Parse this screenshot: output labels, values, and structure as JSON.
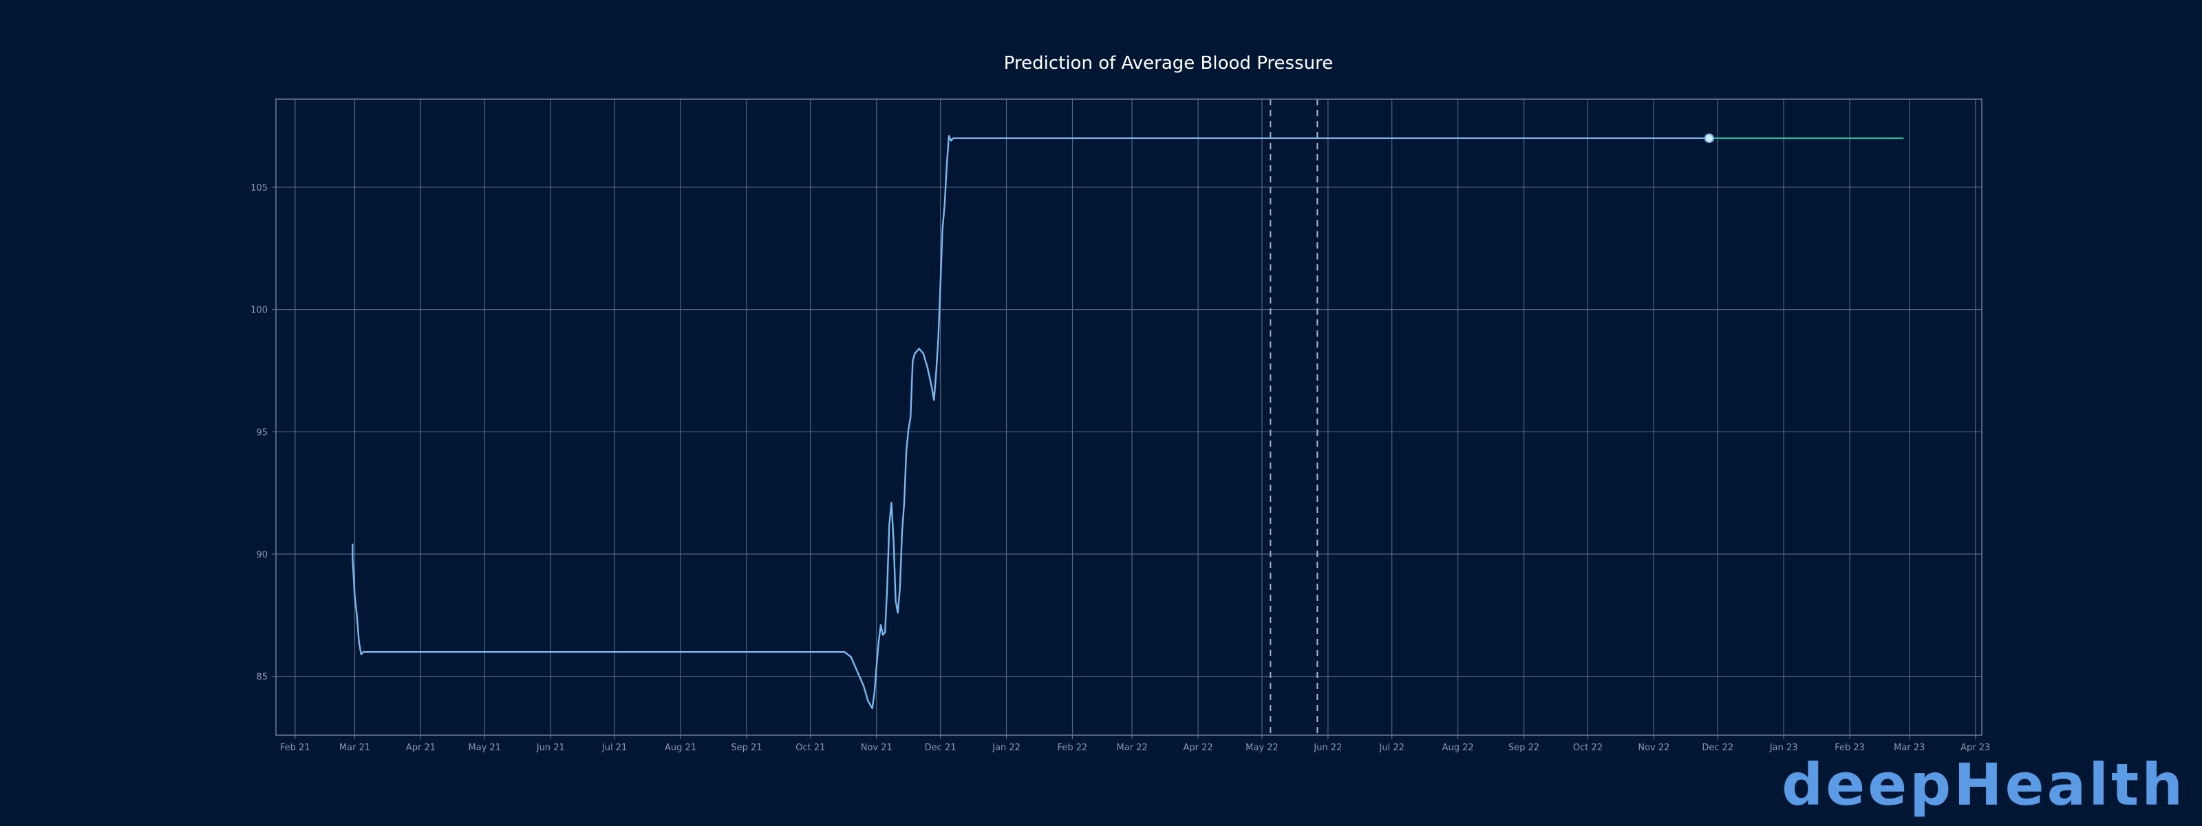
{
  "chart_data": {
    "type": "line",
    "title": "Prediction of Average Blood Pressure",
    "xlabel": "",
    "ylabel": "",
    "x_axis": {
      "type": "date",
      "range": [
        "2021-01-23",
        "2023-04-04"
      ],
      "ticks": [
        {
          "date": "2021-02-01",
          "label": "Feb 21"
        },
        {
          "date": "2021-03-01",
          "label": "Mar 21"
        },
        {
          "date": "2021-04-01",
          "label": "Apr 21"
        },
        {
          "date": "2021-05-01",
          "label": "May 21"
        },
        {
          "date": "2021-06-01",
          "label": "Jun 21"
        },
        {
          "date": "2021-07-01",
          "label": "Jul 21"
        },
        {
          "date": "2021-08-01",
          "label": "Aug 21"
        },
        {
          "date": "2021-09-01",
          "label": "Sep 21"
        },
        {
          "date": "2021-10-01",
          "label": "Oct 21"
        },
        {
          "date": "2021-11-01",
          "label": "Nov 21"
        },
        {
          "date": "2021-12-01",
          "label": "Dec 21"
        },
        {
          "date": "2022-01-01",
          "label": "Jan 22"
        },
        {
          "date": "2022-02-01",
          "label": "Feb 22"
        },
        {
          "date": "2022-03-01",
          "label": "Mar 22"
        },
        {
          "date": "2022-04-01",
          "label": "Apr 22"
        },
        {
          "date": "2022-05-01",
          "label": "May 22"
        },
        {
          "date": "2022-06-01",
          "label": "Jun 22"
        },
        {
          "date": "2022-07-01",
          "label": "Jul 22"
        },
        {
          "date": "2022-08-01",
          "label": "Aug 22"
        },
        {
          "date": "2022-09-01",
          "label": "Sep 22"
        },
        {
          "date": "2022-10-01",
          "label": "Oct 22"
        },
        {
          "date": "2022-11-01",
          "label": "Nov 22"
        },
        {
          "date": "2022-12-01",
          "label": "Dec 22"
        },
        {
          "date": "2023-01-01",
          "label": "Jan 23"
        },
        {
          "date": "2023-02-01",
          "label": "Feb 23"
        },
        {
          "date": "2023-03-01",
          "label": "Mar 23"
        },
        {
          "date": "2023-04-01",
          "label": "Apr 23"
        }
      ]
    },
    "y_axis": {
      "range": [
        82.6,
        108.6
      ],
      "ticks": [
        85,
        90,
        95,
        100,
        105
      ]
    },
    "grid": true,
    "series": [
      {
        "role": "history",
        "color": "#7db8ee",
        "points": [
          [
            "2021-02-28",
            90.4
          ],
          [
            "2021-02-28",
            89.8
          ],
          [
            "2021-03-01",
            88.3
          ],
          [
            "2021-03-02",
            87.5
          ],
          [
            "2021-03-03",
            86.4
          ],
          [
            "2021-03-04",
            85.9
          ],
          [
            "2021-03-05",
            86.0
          ],
          [
            "2021-03-15",
            86.0
          ],
          [
            "2021-05-01",
            86.0
          ],
          [
            "2021-07-01",
            86.0
          ],
          [
            "2021-09-01",
            86.0
          ],
          [
            "2021-10-17",
            86.0
          ],
          [
            "2021-10-20",
            85.8
          ],
          [
            "2021-10-23",
            85.2
          ],
          [
            "2021-10-26",
            84.6
          ],
          [
            "2021-10-28",
            84.0
          ],
          [
            "2021-10-30",
            83.7
          ],
          [
            "2021-10-31",
            84.3
          ],
          [
            "2021-11-01",
            85.4
          ],
          [
            "2021-11-02",
            86.4
          ],
          [
            "2021-11-03",
            87.1
          ],
          [
            "2021-11-04",
            86.7
          ],
          [
            "2021-11-05",
            86.8
          ],
          [
            "2021-11-06",
            88.6
          ],
          [
            "2021-11-07",
            91.2
          ],
          [
            "2021-11-08",
            92.1
          ],
          [
            "2021-11-09",
            90.6
          ],
          [
            "2021-11-10",
            88.1
          ],
          [
            "2021-11-11",
            87.6
          ],
          [
            "2021-11-12",
            88.6
          ],
          [
            "2021-11-13",
            90.9
          ],
          [
            "2021-11-14",
            92.1
          ],
          [
            "2021-11-15",
            94.2
          ],
          [
            "2021-11-16",
            95.1
          ],
          [
            "2021-11-17",
            95.6
          ],
          [
            "2021-11-18",
            97.9
          ],
          [
            "2021-11-19",
            98.2
          ],
          [
            "2021-11-21",
            98.4
          ],
          [
            "2021-11-23",
            98.2
          ],
          [
            "2021-11-25",
            97.6
          ],
          [
            "2021-11-27",
            96.8
          ],
          [
            "2021-11-28",
            96.3
          ],
          [
            "2021-11-29",
            97.4
          ],
          [
            "2021-11-30",
            98.8
          ],
          [
            "2021-12-01",
            101.0
          ],
          [
            "2021-12-02",
            103.3
          ],
          [
            "2021-12-03",
            104.3
          ],
          [
            "2021-12-04",
            105.9
          ],
          [
            "2021-12-05",
            107.1
          ],
          [
            "2021-12-06",
            106.9
          ],
          [
            "2021-12-07",
            107.0
          ],
          [
            "2021-12-15",
            107.0
          ],
          [
            "2022-03-01",
            107.0
          ],
          [
            "2022-07-01",
            107.0
          ],
          [
            "2022-11-27",
            107.0
          ]
        ]
      },
      {
        "role": "prediction",
        "color": "#1fc49a",
        "points": [
          [
            "2022-11-27",
            107.0
          ],
          [
            "2023-01-01",
            107.0
          ],
          [
            "2023-02-26",
            107.0
          ]
        ]
      }
    ],
    "marker": {
      "date": "2022-11-27",
      "value": 107.0,
      "color": "#cfeeff"
    },
    "vertical_lines": [
      "2022-05-05",
      "2022-05-27"
    ]
  },
  "branding": {
    "logo_text": "deepHealth",
    "logo_color": "#5b9be6"
  }
}
